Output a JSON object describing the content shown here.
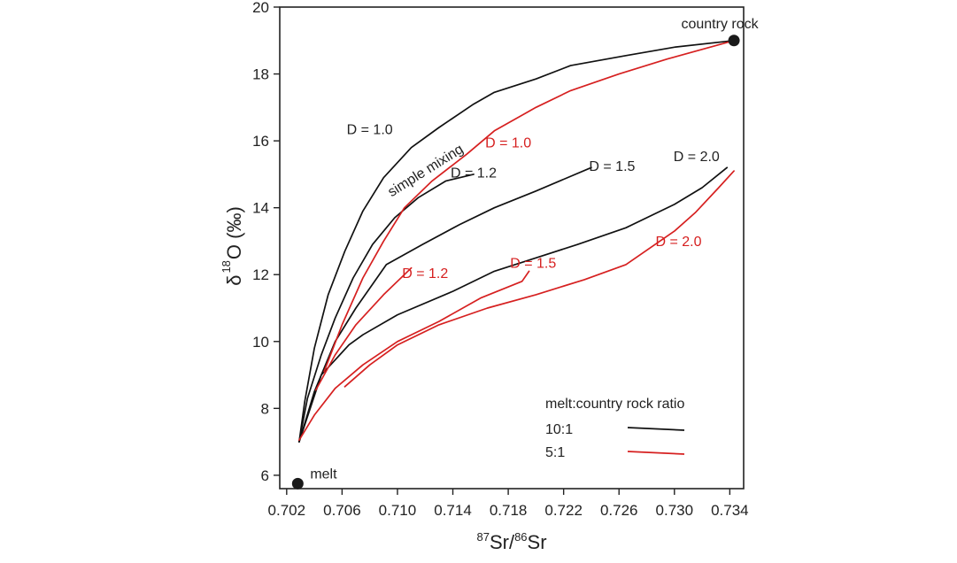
{
  "chart_data": {
    "type": "line",
    "xlabel": {
      "sup1": "87",
      "main1": "Sr/",
      "sup2": "86",
      "main2": "Sr"
    },
    "ylabel": {
      "delta": "δ",
      "sup": "18",
      "main": "O (‰)"
    },
    "xlim": [
      0.7015,
      0.735
    ],
    "ylim": [
      5.6,
      20
    ],
    "xticks": [
      "0.702",
      "0.706",
      "0.710",
      "0.714",
      "0.718",
      "0.722",
      "0.726",
      "0.730",
      "0.734"
    ],
    "yticks": [
      "6",
      "8",
      "10",
      "12",
      "14",
      "16",
      "18",
      "20"
    ],
    "colors": {
      "black": "#111111",
      "red": "#d62020"
    },
    "endpoints": [
      {
        "label": "melt",
        "x": 0.7028,
        "y": 5.75
      },
      {
        "label": "country rock",
        "x": 0.7343,
        "y": 19.0
      }
    ],
    "series": [
      {
        "ratio": "10:1",
        "color": "black",
        "label": "D = 1.0",
        "points": [
          [
            0.7029,
            7.0
          ],
          [
            0.7033,
            8.2
          ],
          [
            0.704,
            9.8
          ],
          [
            0.705,
            11.4
          ],
          [
            0.7062,
            12.7
          ],
          [
            0.7075,
            13.9
          ],
          [
            0.709,
            14.9
          ],
          [
            0.711,
            15.8
          ],
          [
            0.713,
            16.4
          ],
          [
            0.7155,
            17.1
          ],
          [
            0.717,
            17.45
          ],
          [
            0.72,
            17.85
          ],
          [
            0.7225,
            18.25
          ],
          [
            0.7265,
            18.55
          ],
          [
            0.73,
            18.8
          ],
          [
            0.7343,
            19.0
          ]
        ]
      },
      {
        "ratio": "10:1",
        "color": "black",
        "label": "D = 1.2",
        "points": [
          [
            0.7029,
            7.0
          ],
          [
            0.7035,
            8.3
          ],
          [
            0.7045,
            9.6
          ],
          [
            0.7055,
            10.7
          ],
          [
            0.7068,
            11.9
          ],
          [
            0.7082,
            12.9
          ],
          [
            0.7098,
            13.7
          ],
          [
            0.7115,
            14.3
          ],
          [
            0.7135,
            14.8
          ],
          [
            0.7155,
            15.0
          ]
        ]
      },
      {
        "ratio": "10:1",
        "color": "black",
        "label": "D = 1.5",
        "points": [
          [
            0.7029,
            7.0
          ],
          [
            0.704,
            8.5
          ],
          [
            0.7055,
            10.0
          ],
          [
            0.707,
            11.0
          ],
          [
            0.7092,
            12.3
          ],
          [
            0.7118,
            12.9
          ],
          [
            0.7145,
            13.5
          ],
          [
            0.717,
            14.0
          ],
          [
            0.72,
            14.5
          ],
          [
            0.724,
            15.2
          ]
        ]
      },
      {
        "ratio": "10:1",
        "color": "black",
        "label": "D = 2.0",
        "points": [
          [
            0.7029,
            7.0
          ],
          [
            0.7045,
            9.0
          ],
          [
            0.7065,
            9.9
          ],
          [
            0.7075,
            10.2
          ],
          [
            0.71,
            10.8
          ],
          [
            0.714,
            11.5
          ],
          [
            0.717,
            12.1
          ],
          [
            0.72,
            12.5
          ],
          [
            0.723,
            12.9
          ],
          [
            0.7265,
            13.4
          ],
          [
            0.73,
            14.1
          ],
          [
            0.732,
            14.6
          ],
          [
            0.7338,
            15.2
          ]
        ]
      },
      {
        "ratio": "5:1",
        "color": "red",
        "label": "D = 1.0",
        "points": [
          [
            0.7047,
            9.1
          ],
          [
            0.706,
            10.5
          ],
          [
            0.7075,
            11.9
          ],
          [
            0.709,
            13.0
          ],
          [
            0.7105,
            14.0
          ],
          [
            0.7125,
            14.8
          ],
          [
            0.715,
            15.6
          ],
          [
            0.717,
            16.3
          ],
          [
            0.72,
            17.0
          ],
          [
            0.7225,
            17.5
          ],
          [
            0.726,
            18.0
          ],
          [
            0.7295,
            18.45
          ],
          [
            0.7343,
            19.0
          ]
        ]
      },
      {
        "ratio": "5:1",
        "color": "red",
        "label": "D = 1.2",
        "points": [
          [
            0.7041,
            8.55
          ],
          [
            0.7055,
            9.6
          ],
          [
            0.707,
            10.5
          ],
          [
            0.709,
            11.4
          ],
          [
            0.711,
            12.2
          ]
        ]
      },
      {
        "ratio": "5:1",
        "color": "red",
        "label": "D = 1.5",
        "points": [
          [
            0.7029,
            7.05
          ],
          [
            0.704,
            7.8
          ],
          [
            0.7055,
            8.6
          ],
          [
            0.7075,
            9.3
          ],
          [
            0.71,
            10.0
          ],
          [
            0.713,
            10.6
          ],
          [
            0.716,
            11.3
          ],
          [
            0.719,
            11.8
          ],
          [
            0.7195,
            12.1
          ]
        ]
      },
      {
        "ratio": "5:1",
        "color": "red",
        "label": "D = 2.0",
        "points": [
          [
            0.7062,
            8.65
          ],
          [
            0.708,
            9.3
          ],
          [
            0.71,
            9.9
          ],
          [
            0.713,
            10.5
          ],
          [
            0.7165,
            11.0
          ],
          [
            0.72,
            11.4
          ],
          [
            0.7235,
            11.85
          ],
          [
            0.7265,
            12.3
          ],
          [
            0.73,
            13.3
          ],
          [
            0.7315,
            13.85
          ],
          [
            0.7332,
            14.6
          ],
          [
            0.7343,
            15.1
          ]
        ]
      }
    ],
    "annotations": [
      {
        "text": "D = 1.0",
        "color": "black",
        "x": 0.708,
        "y": 16.2
      },
      {
        "text": "simple mixing",
        "color": "black",
        "x": 0.7122,
        "y": 15.0,
        "rotate": -32
      },
      {
        "text": "D = 1.2",
        "color": "black",
        "x": 0.7155,
        "y": 14.9
      },
      {
        "text": "D = 1.5",
        "color": "black",
        "x": 0.7255,
        "y": 15.1
      },
      {
        "text": "D = 2.0",
        "color": "black",
        "x": 0.7316,
        "y": 15.4
      },
      {
        "text": "D = 1.0",
        "color": "red",
        "x": 0.718,
        "y": 15.8
      },
      {
        "text": "D = 1.2",
        "color": "red",
        "x": 0.712,
        "y": 11.9
      },
      {
        "text": "D = 1.5",
        "color": "red",
        "x": 0.7198,
        "y": 12.2
      },
      {
        "text": "D = 2.0",
        "color": "red",
        "x": 0.7303,
        "y": 12.85
      }
    ],
    "legend": {
      "title": "melt:country rock ratio",
      "placement": "bottom-right",
      "entries": [
        {
          "label": "10:1",
          "color": "black"
        },
        {
          "label": "5:1",
          "color": "red"
        }
      ]
    }
  }
}
